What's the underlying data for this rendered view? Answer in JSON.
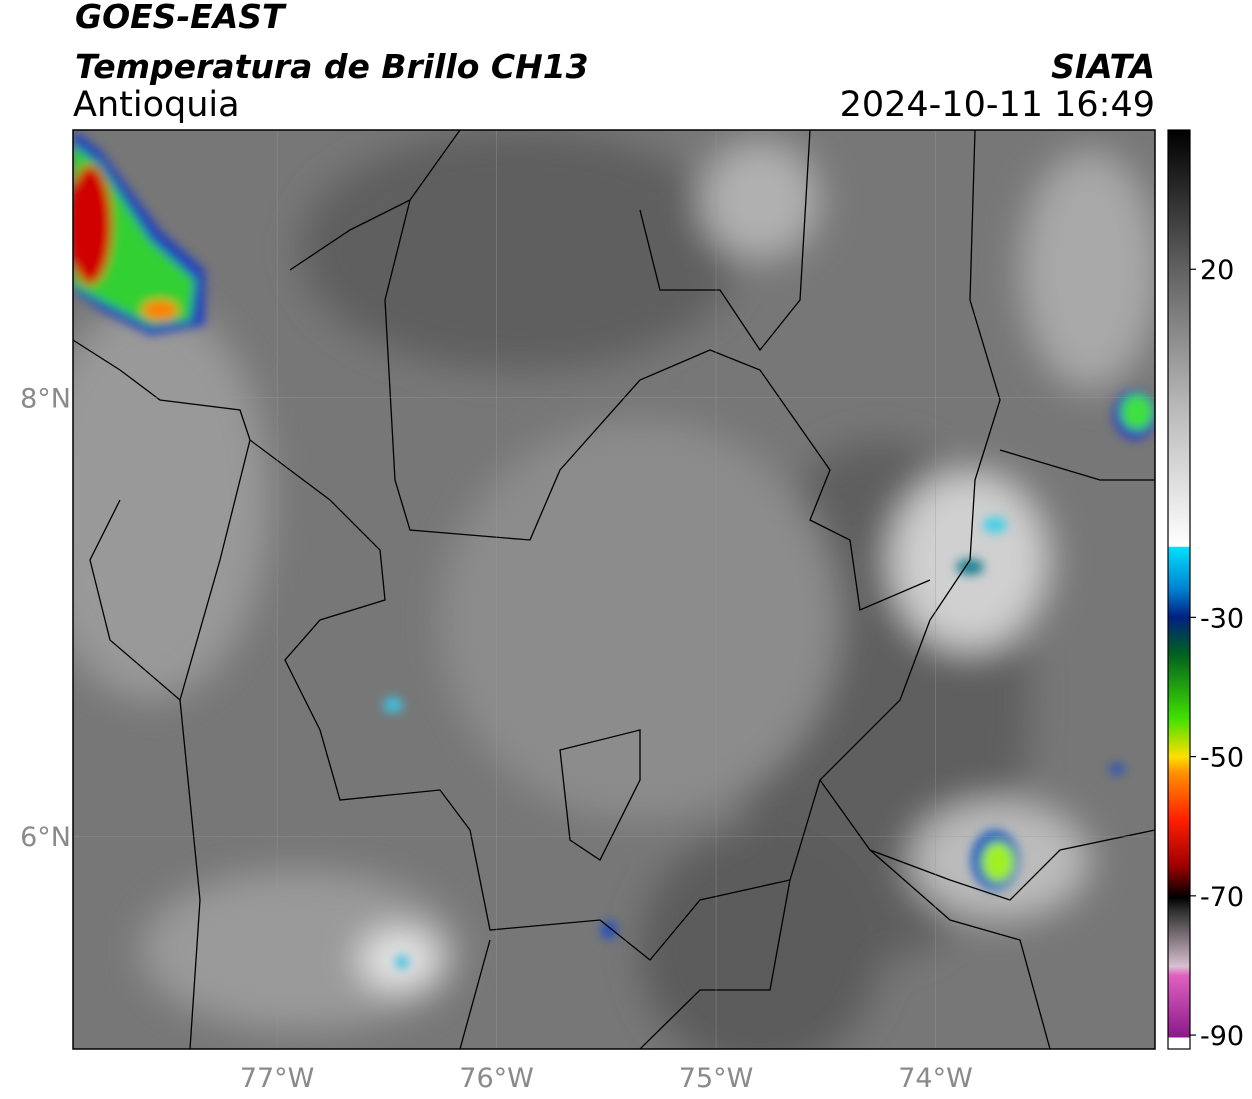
{
  "header": {
    "title": "GOES-EAST",
    "subtitle": "Temperatura de Brillo CH13",
    "region": "Antioquia",
    "source": "SIATA",
    "datetime": "2024-10-11 16:49"
  },
  "map": {
    "xlim": [
      -77.93,
      -73.0
    ],
    "ylim": [
      5.03,
      9.22
    ],
    "lon_ticks": [
      {
        "value": -77,
        "label": "77°W"
      },
      {
        "value": -76,
        "label": "76°W"
      },
      {
        "value": -75,
        "label": "75°W"
      },
      {
        "value": -74,
        "label": "74°W"
      }
    ],
    "lat_ticks": [
      {
        "value": 8,
        "label": "8°N"
      },
      {
        "value": 6,
        "label": "6°N"
      }
    ]
  },
  "colorbar": {
    "lim": [
      -92,
      40
    ],
    "ticks": [
      20,
      -30,
      -50,
      -70,
      -90
    ]
  }
}
